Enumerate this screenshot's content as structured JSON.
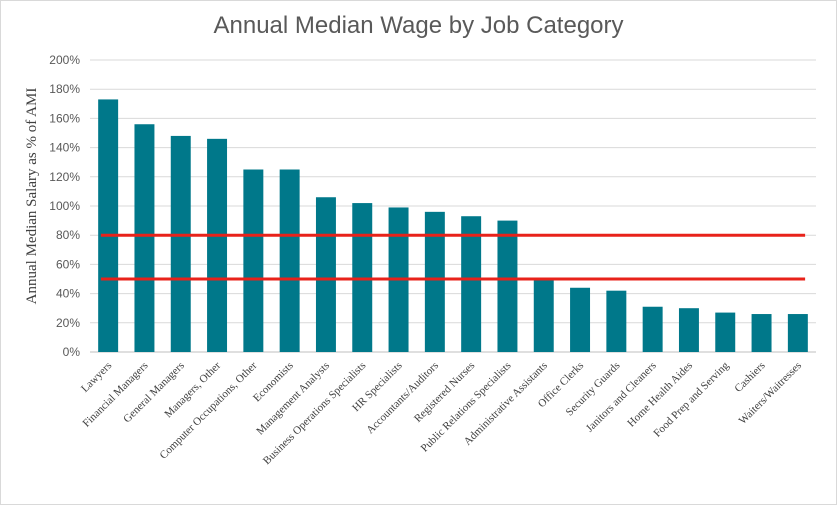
{
  "chart_data": {
    "type": "bar",
    "title": "Annual Median Wage by Job Category",
    "ylabel": "Annual Median Salary as % of AMI",
    "xlabel": "",
    "ylim": [
      0,
      200
    ],
    "yticks": [
      "0%",
      "20%",
      "40%",
      "60%",
      "80%",
      "100%",
      "120%",
      "140%",
      "160%",
      "180%",
      "200%"
    ],
    "grid": true,
    "bar_color": "#00788A",
    "reference_line_color": "#E8221A",
    "reference_lines": [
      80,
      50
    ],
    "categories": [
      "Lawyers",
      "Financial Managers",
      "General Managers",
      "Managers, Other",
      "Computer Occupations, Other",
      "Economists",
      "Management Analysts",
      "Business Operations Specialists",
      "HR Specialists",
      "Accountants/Auditors",
      "Registered Nurses",
      "Public Relations Specialists",
      "Administrative Assistants",
      "Office Clerks",
      "Security Guards",
      "Janitors and Cleaners",
      "Home Health Aides",
      "Food Prep and Serving",
      "Cashiers",
      "Waiters/Waitresses"
    ],
    "values": [
      173,
      156,
      148,
      146,
      125,
      125,
      106,
      102,
      99,
      96,
      93,
      90,
      50,
      44,
      42,
      31,
      30,
      27,
      26,
      26
    ]
  }
}
